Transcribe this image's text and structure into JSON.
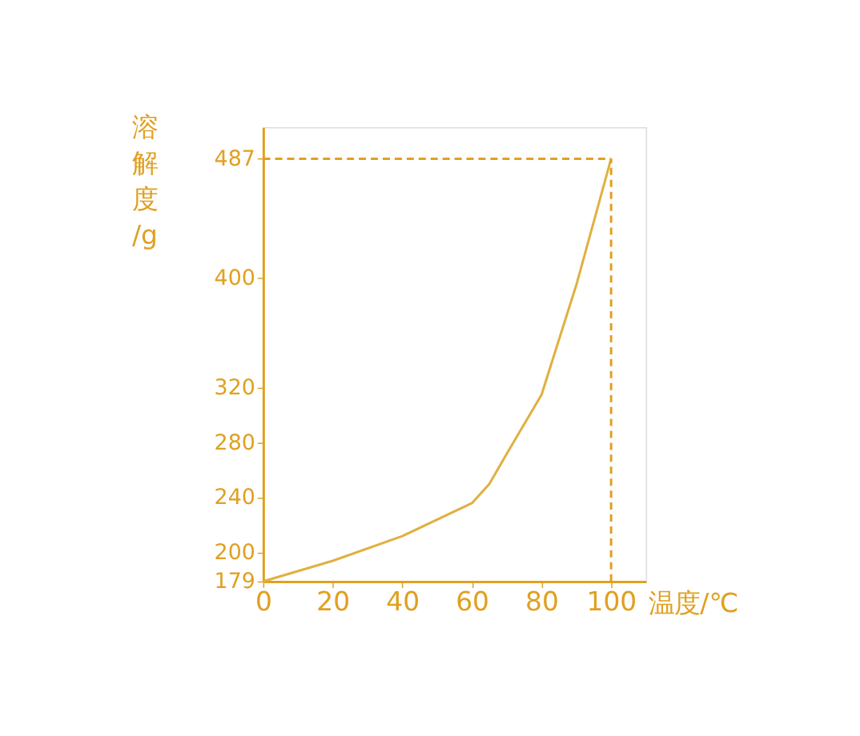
{
  "chart_data": {
    "type": "line",
    "xlabel": "温度/℃",
    "ylabel": "溶解度/g",
    "x": [
      0,
      20,
      40,
      60,
      65,
      70,
      80,
      90,
      100
    ],
    "series": [
      {
        "color": "#e0b040",
        "values": [
          179,
          194,
          212,
          236,
          250,
          272,
          315,
          395,
          487
        ]
      }
    ],
    "xlim": [
      0,
      110
    ],
    "xticks": [
      0,
      20,
      40,
      60,
      80,
      100
    ],
    "ylim": [
      179,
      510
    ],
    "yticks": [
      179,
      200,
      240,
      280,
      320,
      400,
      487
    ],
    "ref_lines": [
      {
        "axis": "y",
        "value": 487,
        "color": "#e0a020",
        "line_style": "dashed"
      },
      {
        "axis": "x",
        "value": 100,
        "color": "#e0a020",
        "line_style": "dashed"
      }
    ],
    "grid": false,
    "marker": "none",
    "line_style": "solid"
  }
}
